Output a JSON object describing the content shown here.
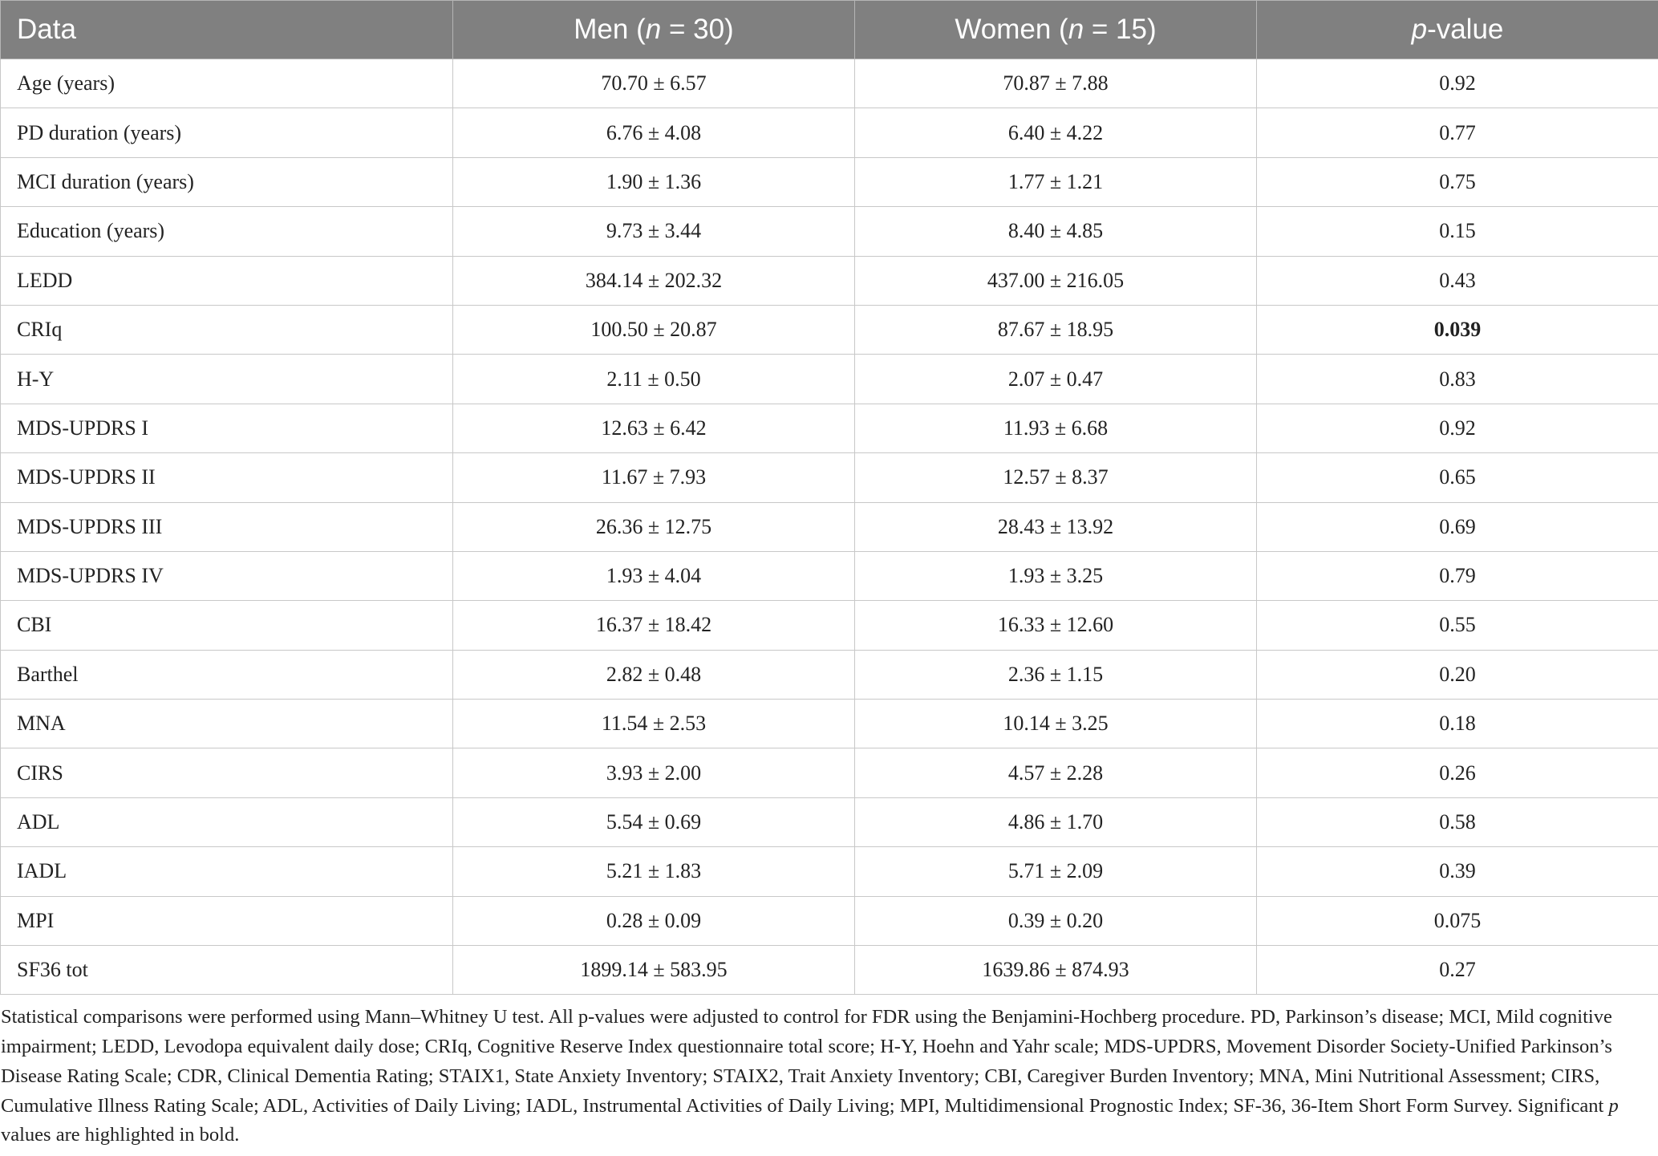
{
  "table": {
    "header": [
      [
        {
          "text": "Data"
        }
      ],
      [
        {
          "text": "Men ("
        },
        {
          "text": "n",
          "italic": true
        },
        {
          "text": " = 30)"
        }
      ],
      [
        {
          "text": "Women ("
        },
        {
          "text": "n",
          "italic": true
        },
        {
          "text": " = 15)"
        }
      ],
      [
        {
          "text": "p",
          "italic": true
        },
        {
          "text": "-value"
        }
      ]
    ],
    "rows": [
      [
        "Age (years)",
        "70.70 ± 6.57",
        "70.87 ± 7.88",
        "0.92"
      ],
      [
        "PD duration (years)",
        "6.76 ± 4.08",
        "6.40 ± 4.22",
        "0.77"
      ],
      [
        "MCI duration (years)",
        "1.90 ± 1.36",
        "1.77 ± 1.21",
        "0.75"
      ],
      [
        "Education (years)",
        "9.73 ± 3.44",
        "8.40 ± 4.85",
        "0.15"
      ],
      [
        "LEDD",
        "384.14 ± 202.32",
        "437.00 ± 216.05",
        "0.43"
      ],
      [
        "CRIq",
        "100.50 ± 20.87",
        "87.67 ± 18.95",
        "0.039"
      ],
      [
        "H-Y",
        "2.11 ± 0.50",
        "2.07 ± 0.47",
        "0.83"
      ],
      [
        "MDS-UPDRS I",
        "12.63 ± 6.42",
        "11.93 ± 6.68",
        "0.92"
      ],
      [
        "MDS-UPDRS II",
        "11.67 ± 7.93",
        "12.57 ± 8.37",
        "0.65"
      ],
      [
        "MDS-UPDRS III",
        "26.36 ± 12.75",
        "28.43 ± 13.92",
        "0.69"
      ],
      [
        "MDS-UPDRS IV",
        "1.93 ± 4.04",
        "1.93 ± 3.25",
        "0.79"
      ],
      [
        "CBI",
        "16.37 ± 18.42",
        "16.33 ± 12.60",
        "0.55"
      ],
      [
        "Barthel",
        "2.82 ± 0.48",
        "2.36 ± 1.15",
        "0.20"
      ],
      [
        "MNA",
        "11.54 ± 2.53",
        "10.14 ± 3.25",
        "0.18"
      ],
      [
        "CIRS",
        "3.93 ± 2.00",
        "4.57 ± 2.28",
        "0.26"
      ],
      [
        "ADL",
        "5.54 ± 0.69",
        "4.86 ± 1.70",
        "0.58"
      ],
      [
        "IADL",
        "5.21 ± 1.83",
        "5.71 ± 2.09",
        "0.39"
      ],
      [
        "MPI",
        "0.28 ± 0.09",
        "0.39 ± 0.20",
        "0.075"
      ],
      [
        "SF36 tot",
        "1899.14 ± 583.95",
        "1639.86 ± 874.93",
        "0.27"
      ]
    ],
    "bold_cell": {
      "row": 5,
      "col": 3
    }
  },
  "footnote": [
    {
      "text": "Statistical comparisons were performed using Mann–Whitney U test. All p-values were adjusted to control for FDR using the Benjamini-Hochberg procedure. PD, Parkinson’s disease; MCI, Mild cognitive impairment; LEDD, Levodopa equivalent daily dose; CRIq, Cognitive Reserve Index questionnaire total score; H-Y, Hoehn and Yahr scale; MDS-UPDRS, Movement Disorder Society-Unified Parkinson’s Disease Rating Scale; CDR, Clinical Dementia Rating; STAIX1, State Anxiety Inventory; STAIX2, Trait Anxiety Inventory; CBI, Caregiver Burden Inventory; MNA, Mini Nutritional Assessment; CIRS, Cumulative Illness Rating Scale; ADL, Activities of Daily Living; IADL, Instrumental Activities of Daily Living; MPI, Multidimensional Prognostic Index; SF-36, 36-Item Short Form Survey. Significant "
    },
    {
      "text": "p",
      "italic": true
    },
    {
      "text": " values are highlighted in bold."
    }
  ]
}
